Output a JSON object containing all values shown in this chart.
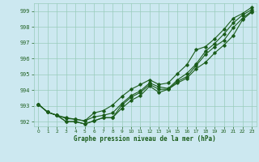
{
  "title": "Graphe pression niveau de la mer (hPa)",
  "bg_color": "#cce8f0",
  "grid_color": "#99ccbb",
  "line_color": "#1a5c1a",
  "xlim": [
    -0.5,
    23.5
  ],
  "ylim": [
    991.7,
    999.5
  ],
  "yticks": [
    992,
    993,
    994,
    995,
    996,
    997,
    998,
    999
  ],
  "xticks": [
    0,
    1,
    2,
    3,
    4,
    5,
    6,
    7,
    8,
    9,
    10,
    11,
    12,
    13,
    14,
    15,
    16,
    17,
    18,
    19,
    20,
    21,
    22,
    23
  ],
  "series1": [
    993.1,
    992.6,
    992.4,
    992.0,
    992.0,
    991.85,
    992.05,
    992.25,
    992.25,
    992.85,
    993.35,
    993.65,
    994.25,
    993.85,
    994.05,
    994.45,
    994.75,
    995.35,
    995.75,
    996.35,
    996.85,
    997.45,
    998.45,
    998.95
  ],
  "series2": [
    993.1,
    992.6,
    992.4,
    992.0,
    992.0,
    991.85,
    992.05,
    992.25,
    992.25,
    993.05,
    993.55,
    993.85,
    994.35,
    994.05,
    994.05,
    994.55,
    994.85,
    995.55,
    996.25,
    996.75,
    997.15,
    997.95,
    998.55,
    999.0
  ],
  "series3": [
    993.1,
    992.6,
    992.4,
    992.2,
    992.15,
    992.05,
    992.3,
    992.4,
    992.55,
    993.15,
    993.65,
    993.95,
    994.45,
    994.2,
    994.1,
    994.65,
    995.05,
    995.65,
    996.45,
    996.95,
    997.55,
    998.25,
    998.75,
    999.1
  ],
  "series4": [
    993.1,
    992.6,
    992.4,
    992.25,
    992.15,
    992.05,
    992.55,
    992.7,
    993.05,
    993.6,
    994.05,
    994.35,
    994.65,
    994.35,
    994.45,
    995.05,
    995.6,
    996.55,
    996.75,
    997.25,
    997.85,
    998.55,
    998.85,
    999.25
  ]
}
